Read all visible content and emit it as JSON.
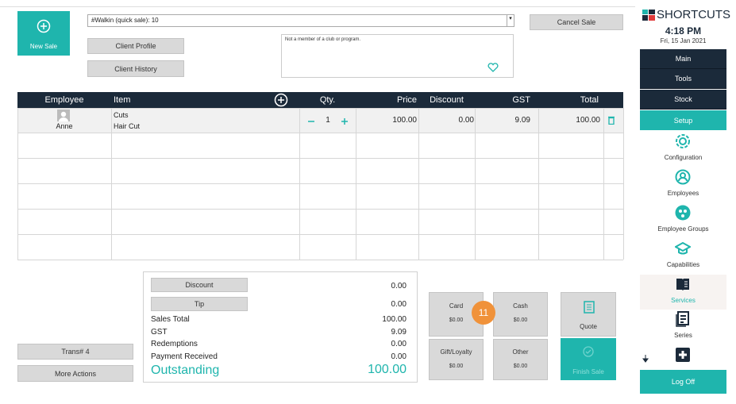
{
  "sale": {
    "new_sale": "New Sale",
    "client": "#Walkin (quick sale): 10",
    "cancel": "Cancel Sale",
    "client_profile": "Client Profile",
    "client_history": "Client History",
    "note": "Not a member of a club or program."
  },
  "table": {
    "columns": [
      "Employee",
      "Item",
      "Qty.",
      "Price",
      "Discount",
      "GST",
      "Total"
    ],
    "rows": [
      {
        "employee": "Anne",
        "item": [
          "Cuts",
          "Hair Cut"
        ],
        "qty": "1",
        "price": "100.00",
        "discount": "0.00",
        "gst": "9.09",
        "total": "100.00"
      }
    ]
  },
  "summary": {
    "discount_button": "Discount",
    "tip_button": "Tip",
    "discount": "0.00",
    "tip": "0.00",
    "lines": [
      {
        "label": "Sales Total",
        "value": "100.00"
      },
      {
        "label": "GST",
        "value": "9.09"
      },
      {
        "label": "Redemptions",
        "value": "0.00"
      },
      {
        "label": "Payment Received",
        "value": "0.00"
      }
    ],
    "outstanding_label": "Outstanding",
    "outstanding": "100.00"
  },
  "payments": [
    {
      "label": "Card",
      "amount": "$0.00"
    },
    {
      "label": "Cash",
      "amount": "$0.00"
    },
    {
      "label": "Gift/Loyalty",
      "amount": "$0.00"
    },
    {
      "label": "Other",
      "amount": "$0.00"
    }
  ],
  "quote": "Quote",
  "finish": "Finish Sale",
  "badge": "11",
  "trans": "Trans# 4",
  "more_actions": "More Actions",
  "sidebar": {
    "brand": "SHORTCUTS",
    "time": "4:18 PM",
    "date": "Fri, 15 Jan 2021",
    "menu": [
      "Main",
      "Tools",
      "Stock",
      "Setup"
    ],
    "shortcuts": [
      "Configuration",
      "Employees",
      "Employee Groups",
      "Capabilities",
      "Services",
      "Series"
    ],
    "log_off": "Log Off"
  }
}
